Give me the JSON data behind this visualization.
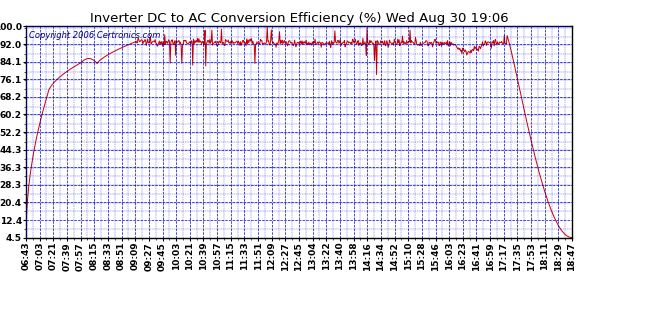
{
  "title": "Inverter DC to AC Conversion Efficiency (%) Wed Aug 30 19:06",
  "copyright": "Copyright 2006 Certronics.com",
  "yticks": [
    4.5,
    12.4,
    20.4,
    28.3,
    36.3,
    44.3,
    52.2,
    60.2,
    68.2,
    76.1,
    84.1,
    92.0,
    100.0
  ],
  "xtick_labels": [
    "06:43",
    "07:03",
    "07:21",
    "07:39",
    "07:57",
    "08:15",
    "08:33",
    "08:51",
    "09:09",
    "09:27",
    "09:45",
    "10:03",
    "10:21",
    "10:39",
    "10:57",
    "11:15",
    "11:33",
    "11:51",
    "12:09",
    "12:27",
    "12:45",
    "13:04",
    "13:22",
    "13:40",
    "13:58",
    "14:16",
    "14:34",
    "14:52",
    "15:10",
    "15:28",
    "15:46",
    "16:03",
    "16:23",
    "16:41",
    "16:59",
    "17:17",
    "17:35",
    "17:53",
    "18:11",
    "18:29",
    "18:47"
  ],
  "bg_color": "#FFFFFF",
  "plot_bg_color": "#FFFFFF",
  "grid_color": "#0000CC",
  "line_color": "#CC0000",
  "title_color": "#000000",
  "copyright_color": "#000080",
  "ylim": [
    4.5,
    100.0
  ],
  "title_fontsize": 9.5,
  "tick_fontsize": 6.5,
  "copyright_fontsize": 6.0
}
